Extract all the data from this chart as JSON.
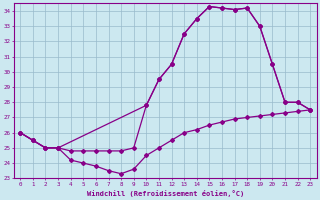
{
  "xlabel": "Windchill (Refroidissement éolien,°C)",
  "bg_color": "#cce8f0",
  "line_color": "#880088",
  "grid_color": "#99bbcc",
  "xlim": [
    -0.5,
    23.5
  ],
  "ylim": [
    23,
    34.5
  ],
  "yticks": [
    23,
    24,
    25,
    26,
    27,
    28,
    29,
    30,
    31,
    32,
    33,
    34
  ],
  "xticks": [
    0,
    1,
    2,
    3,
    4,
    5,
    6,
    7,
    8,
    9,
    10,
    11,
    12,
    13,
    14,
    15,
    16,
    17,
    18,
    19,
    20,
    21,
    22,
    23
  ],
  "line1_x": [
    0,
    1,
    2,
    3,
    4,
    5,
    6,
    7,
    8,
    9,
    10,
    11,
    12,
    13,
    14,
    15,
    16,
    17,
    18,
    19,
    20,
    21,
    22,
    23
  ],
  "line1_y": [
    26.0,
    25.5,
    25.0,
    25.0,
    24.2,
    24.0,
    23.8,
    23.5,
    23.3,
    23.6,
    24.5,
    25.0,
    25.5,
    26.0,
    26.2,
    26.5,
    26.7,
    26.9,
    27.0,
    27.1,
    27.2,
    27.3,
    27.4,
    27.5
  ],
  "line2_x": [
    0,
    1,
    2,
    3,
    4,
    5,
    6,
    7,
    8,
    9,
    10,
    11,
    12,
    13,
    14,
    15,
    16,
    17,
    18,
    19,
    20,
    21,
    22,
    23
  ],
  "line2_y": [
    26.0,
    25.5,
    25.0,
    25.0,
    24.8,
    24.8,
    24.8,
    24.8,
    24.8,
    25.0,
    27.8,
    29.5,
    30.5,
    32.5,
    33.5,
    34.3,
    34.2,
    34.1,
    34.2,
    33.0,
    30.5,
    28.0,
    28.0,
    27.5
  ],
  "line3_x": [
    0,
    1,
    2,
    3,
    10,
    11,
    12,
    13,
    14,
    15,
    16,
    17,
    18,
    19,
    20,
    21,
    22,
    23
  ],
  "line3_y": [
    26.0,
    25.5,
    25.0,
    25.0,
    27.8,
    29.5,
    30.5,
    32.5,
    33.5,
    34.3,
    34.2,
    34.1,
    34.2,
    33.0,
    30.5,
    28.0,
    28.0,
    27.5
  ]
}
